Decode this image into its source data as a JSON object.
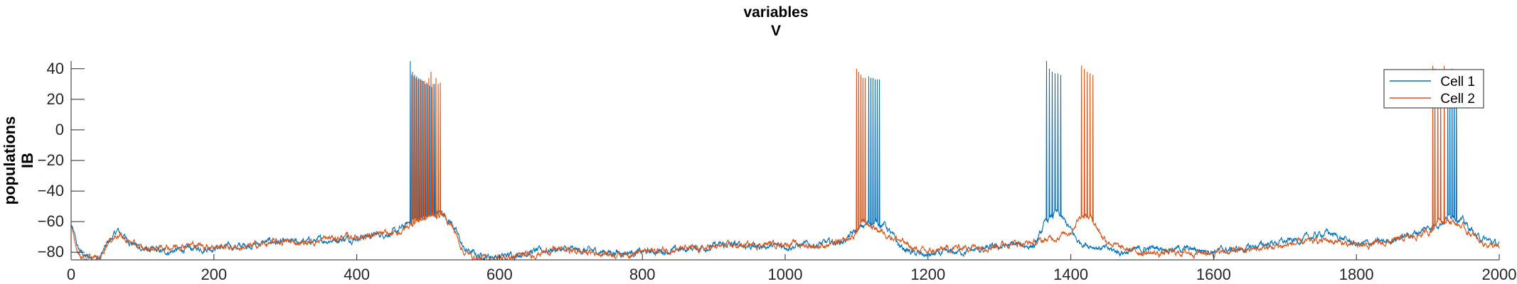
{
  "chart_data": {
    "type": "line",
    "title": [
      "variables",
      "V"
    ],
    "ylabel": [
      "populations",
      "IB"
    ],
    "xlabel": "",
    "xlim": [
      0,
      2000
    ],
    "ylim": [
      -85,
      45
    ],
    "xticks": [
      0,
      200,
      400,
      600,
      800,
      1000,
      1200,
      1400,
      1600,
      1800,
      2000
    ],
    "yticks": [
      -80,
      -60,
      -40,
      -20,
      0,
      20,
      40
    ],
    "grid": false,
    "legend": "top-right",
    "series": [
      {
        "name": "Cell 1",
        "color": "#0072BD",
        "baseline": [
          [
            0,
            -62
          ],
          [
            10,
            -78
          ],
          [
            20,
            -83
          ],
          [
            40,
            -84
          ],
          [
            50,
            -75
          ],
          [
            65,
            -66
          ],
          [
            80,
            -72
          ],
          [
            100,
            -78
          ],
          [
            130,
            -80
          ],
          [
            160,
            -78
          ],
          [
            200,
            -77
          ],
          [
            240,
            -76
          ],
          [
            280,
            -73
          ],
          [
            300,
            -74
          ],
          [
            330,
            -73
          ],
          [
            360,
            -72
          ],
          [
            390,
            -71
          ],
          [
            420,
            -69
          ],
          [
            455,
            -67
          ],
          [
            470,
            -62
          ],
          [
            480,
            -58
          ],
          [
            500,
            -56
          ],
          [
            520,
            -54
          ],
          [
            535,
            -62
          ],
          [
            550,
            -78
          ],
          [
            570,
            -82
          ],
          [
            600,
            -83
          ],
          [
            640,
            -80
          ],
          [
            680,
            -78
          ],
          [
            720,
            -79
          ],
          [
            760,
            -80
          ],
          [
            800,
            -80
          ],
          [
            840,
            -79
          ],
          [
            880,
            -77
          ],
          [
            920,
            -75
          ],
          [
            960,
            -76
          ],
          [
            1000,
            -76
          ],
          [
            1040,
            -75
          ],
          [
            1080,
            -73
          ],
          [
            1100,
            -66
          ],
          [
            1120,
            -60
          ],
          [
            1140,
            -62
          ],
          [
            1160,
            -76
          ],
          [
            1180,
            -81
          ],
          [
            1200,
            -82
          ],
          [
            1240,
            -80
          ],
          [
            1280,
            -78
          ],
          [
            1320,
            -75
          ],
          [
            1350,
            -76
          ],
          [
            1365,
            -60
          ],
          [
            1380,
            -54
          ],
          [
            1395,
            -62
          ],
          [
            1410,
            -73
          ],
          [
            1440,
            -77
          ],
          [
            1470,
            -80
          ],
          [
            1520,
            -77
          ],
          [
            1560,
            -78
          ],
          [
            1600,
            -79
          ],
          [
            1640,
            -78
          ],
          [
            1680,
            -74
          ],
          [
            1720,
            -72
          ],
          [
            1760,
            -67
          ],
          [
            1800,
            -75
          ],
          [
            1840,
            -73
          ],
          [
            1880,
            -68
          ],
          [
            1900,
            -64
          ],
          [
            1920,
            -60
          ],
          [
            1935,
            -55
          ],
          [
            1950,
            -60
          ],
          [
            1970,
            -70
          ],
          [
            2000,
            -75
          ]
        ],
        "spikes": [
          [
            475,
            45
          ],
          [
            478,
            38
          ],
          [
            481,
            36
          ],
          [
            484,
            35
          ],
          [
            487,
            34
          ],
          [
            490,
            33
          ],
          [
            493,
            32
          ],
          [
            496,
            30
          ],
          [
            499,
            30
          ],
          [
            502,
            29
          ],
          [
            505,
            28
          ],
          [
            509,
            30
          ],
          [
            1117,
            35
          ],
          [
            1120,
            34
          ],
          [
            1123,
            34
          ],
          [
            1126,
            33
          ],
          [
            1129,
            33
          ],
          [
            1132,
            33
          ],
          [
            1366,
            45
          ],
          [
            1370,
            40
          ],
          [
            1374,
            38
          ],
          [
            1378,
            37
          ],
          [
            1382,
            37
          ],
          [
            1386,
            36
          ],
          [
            1928,
            30
          ],
          [
            1931,
            32
          ],
          [
            1934,
            40
          ],
          [
            1937,
            38
          ],
          [
            1940,
            35
          ]
        ]
      },
      {
        "name": "Cell 2",
        "color": "#D95319",
        "baseline": [
          [
            0,
            -64
          ],
          [
            10,
            -80
          ],
          [
            20,
            -84
          ],
          [
            40,
            -84
          ],
          [
            50,
            -74
          ],
          [
            65,
            -68
          ],
          [
            80,
            -73
          ],
          [
            100,
            -78
          ],
          [
            130,
            -77
          ],
          [
            160,
            -75
          ],
          [
            200,
            -76
          ],
          [
            240,
            -77
          ],
          [
            280,
            -74
          ],
          [
            300,
            -73
          ],
          [
            330,
            -74
          ],
          [
            360,
            -71
          ],
          [
            390,
            -70
          ],
          [
            420,
            -69
          ],
          [
            455,
            -68
          ],
          [
            470,
            -64
          ],
          [
            480,
            -60
          ],
          [
            500,
            -57
          ],
          [
            520,
            -55
          ],
          [
            535,
            -64
          ],
          [
            550,
            -80
          ],
          [
            570,
            -84
          ],
          [
            600,
            -84
          ],
          [
            640,
            -82
          ],
          [
            680,
            -78
          ],
          [
            720,
            -80
          ],
          [
            760,
            -81
          ],
          [
            800,
            -80
          ],
          [
            840,
            -78
          ],
          [
            880,
            -78
          ],
          [
            920,
            -76
          ],
          [
            960,
            -75
          ],
          [
            1000,
            -74
          ],
          [
            1040,
            -76
          ],
          [
            1080,
            -74
          ],
          [
            1095,
            -70
          ],
          [
            1110,
            -60
          ],
          [
            1125,
            -64
          ],
          [
            1160,
            -72
          ],
          [
            1180,
            -78
          ],
          [
            1200,
            -80
          ],
          [
            1240,
            -77
          ],
          [
            1280,
            -76
          ],
          [
            1320,
            -74
          ],
          [
            1350,
            -74
          ],
          [
            1380,
            -70
          ],
          [
            1400,
            -66
          ],
          [
            1415,
            -55
          ],
          [
            1430,
            -58
          ],
          [
            1445,
            -70
          ],
          [
            1470,
            -78
          ],
          [
            1520,
            -81
          ],
          [
            1560,
            -80
          ],
          [
            1600,
            -80
          ],
          [
            1640,
            -79
          ],
          [
            1680,
            -77
          ],
          [
            1720,
            -74
          ],
          [
            1760,
            -72
          ],
          [
            1800,
            -76
          ],
          [
            1840,
            -74
          ],
          [
            1880,
            -70
          ],
          [
            1905,
            -66
          ],
          [
            1915,
            -58
          ],
          [
            1935,
            -60
          ],
          [
            1950,
            -64
          ],
          [
            1970,
            -72
          ],
          [
            2000,
            -78
          ]
        ],
        "spikes": [
          [
            477,
            36
          ],
          [
            480,
            35
          ],
          [
            483,
            34
          ],
          [
            486,
            33
          ],
          [
            489,
            33
          ],
          [
            492,
            32
          ],
          [
            495,
            32
          ],
          [
            498,
            31
          ],
          [
            501,
            34
          ],
          [
            504,
            38
          ],
          [
            507,
            30
          ],
          [
            511,
            34
          ],
          [
            514,
            30
          ],
          [
            517,
            31
          ],
          [
            1100,
            40
          ],
          [
            1103,
            38
          ],
          [
            1106,
            36
          ],
          [
            1109,
            34
          ],
          [
            1112,
            34
          ],
          [
            1415,
            42
          ],
          [
            1419,
            40
          ],
          [
            1423,
            38
          ],
          [
            1427,
            37
          ],
          [
            1431,
            36
          ],
          [
            1907,
            42
          ],
          [
            1910,
            40
          ],
          [
            1914,
            38
          ],
          [
            1918,
            36
          ],
          [
            1923,
            42
          ]
        ]
      }
    ]
  }
}
